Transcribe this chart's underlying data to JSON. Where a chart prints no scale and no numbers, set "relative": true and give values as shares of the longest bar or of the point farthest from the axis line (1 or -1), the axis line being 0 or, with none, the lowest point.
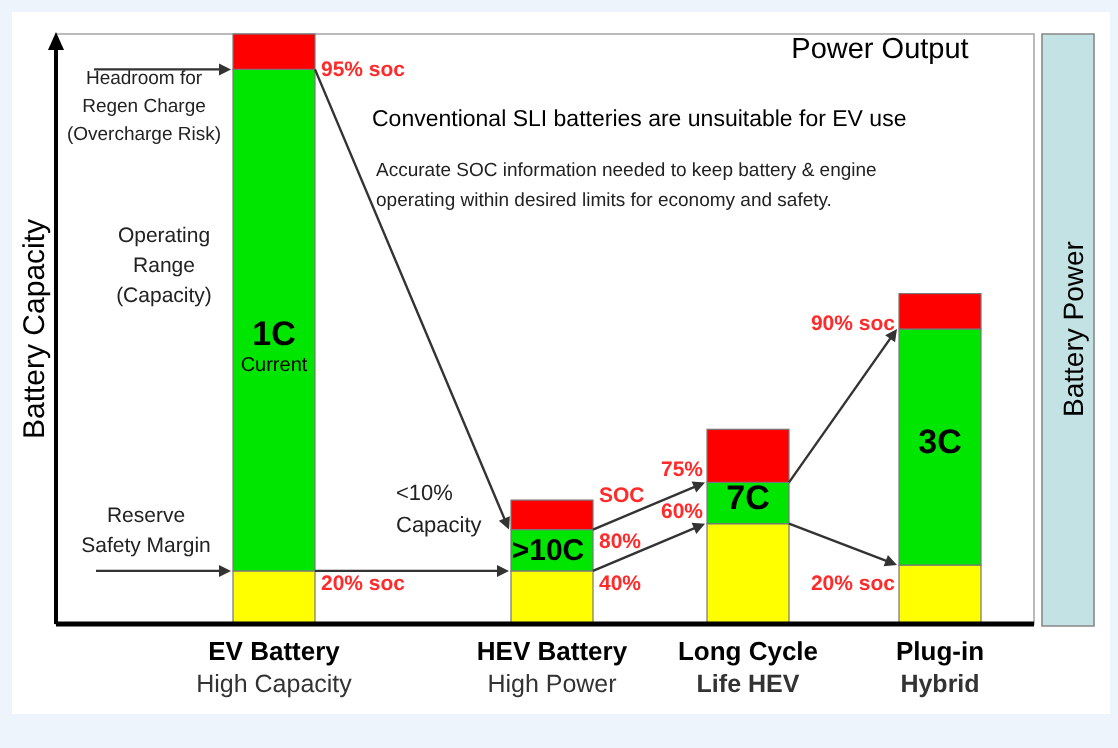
{
  "chart_data": {
    "type": "bar",
    "stacked": true,
    "relative": true,
    "title": "Power Output",
    "subtitle": "Conventional SLI batteries are unsuitable for EV use",
    "ylabel": "Battery Capacity",
    "y2label": "Battery Power",
    "categories": [
      "EV Battery\nHigh Capacity",
      "HEV Battery\nHigh Power",
      "Long Cycle\nLife HEV",
      "Plug-in\nHybrid"
    ],
    "series": [
      {
        "color": "#ffff00",
        "values": [
          0.09,
          0.09,
          0.17,
          0.1
        ]
      },
      {
        "color": "#00e600",
        "values": [
          0.85,
          0.07,
          0.07,
          0.4
        ]
      },
      {
        "color": "#ff0000",
        "values": [
          0.06,
          0.05,
          0.09,
          0.06
        ]
      }
    ],
    "annotations": [
      "Headroom for\nRegen Charge\n(Overcharge Risk)",
      "Operating\nRange\n(Capacity)",
      "Reserve\nSafety Margin",
      "Accurate SOC information needed to keep battery & engine\noperating within desired limits for economy and safety.",
      "<10%\nCapacity",
      "95% soc",
      "20% soc",
      "1C",
      "Current",
      "SOC",
      "80%",
      "40%",
      ">10C",
      "75%",
      "60%",
      "7C",
      "90% soc",
      "20% soc",
      "3C"
    ]
  }
}
